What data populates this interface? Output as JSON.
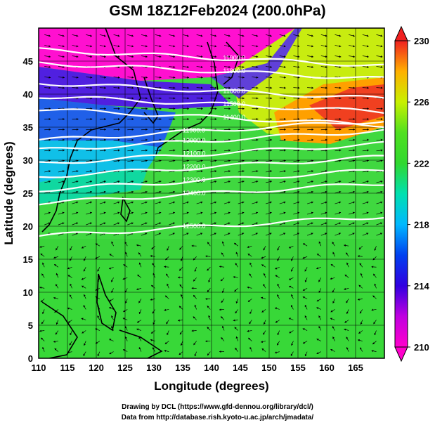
{
  "title": "GSM 18Z12Feb2024 (200.0hPa)",
  "credits": {
    "line1": "Drawing by DCL (https://www.gfd-dennou.org/library/dcl/)",
    "line2": "Data from http://database.rish.kyoto-u.ac.jp/arch/jmadata/"
  },
  "map": {
    "xlabel": "Longitude (degrees)",
    "ylabel": "Latitude  (degrees)",
    "xlim": [
      110,
      170
    ],
    "ylim": [
      0,
      50
    ],
    "xticks": [
      "110",
      "115",
      "120",
      "125",
      "130",
      "135",
      "140",
      "145",
      "150",
      "155",
      "160",
      "165"
    ],
    "yticks": [
      "0",
      "5",
      "10",
      "15",
      "20",
      "25",
      "30",
      "35",
      "40",
      "45"
    ],
    "gridlines_every_deg": 5,
    "contours": [
      {
        "label": "11900.0",
        "lat_at_140": 45.5
      },
      {
        "label": "11800.0",
        "lat_at_140": 43.5
      },
      {
        "label": "11600.0",
        "lat_at_140": 40.5
      },
      {
        "label": "11500.0",
        "lat_at_140": 38.5
      },
      {
        "label": "11400.0",
        "lat_at_140": 36.5
      },
      {
        "label": "11900.0",
        "lat_at_135": 34.5
      },
      {
        "label": "12000.0",
        "lat_at_135": 33.0
      },
      {
        "label": "12100.0",
        "lat_at_135": 31.0
      },
      {
        "label": "12200.0",
        "lat_at_135": 29.0
      },
      {
        "label": "12300.0",
        "lat_at_135": 27.0
      },
      {
        "label": "12400.0",
        "lat_at_135": 25.0
      },
      {
        "label": "12500.0",
        "lat_at_135": 20.0
      }
    ]
  },
  "colorbar": {
    "min": 210,
    "max": 230,
    "tick_labels": [
      "230",
      "226",
      "222",
      "218",
      "214",
      "210"
    ],
    "colors": [
      "#ff00cc",
      "#8a00e0",
      "#0000d0",
      "#00c8ff",
      "#00e0a0",
      "#33d933",
      "#b8f000",
      "#ffd000",
      "#ff8000",
      "#e81010"
    ]
  }
}
